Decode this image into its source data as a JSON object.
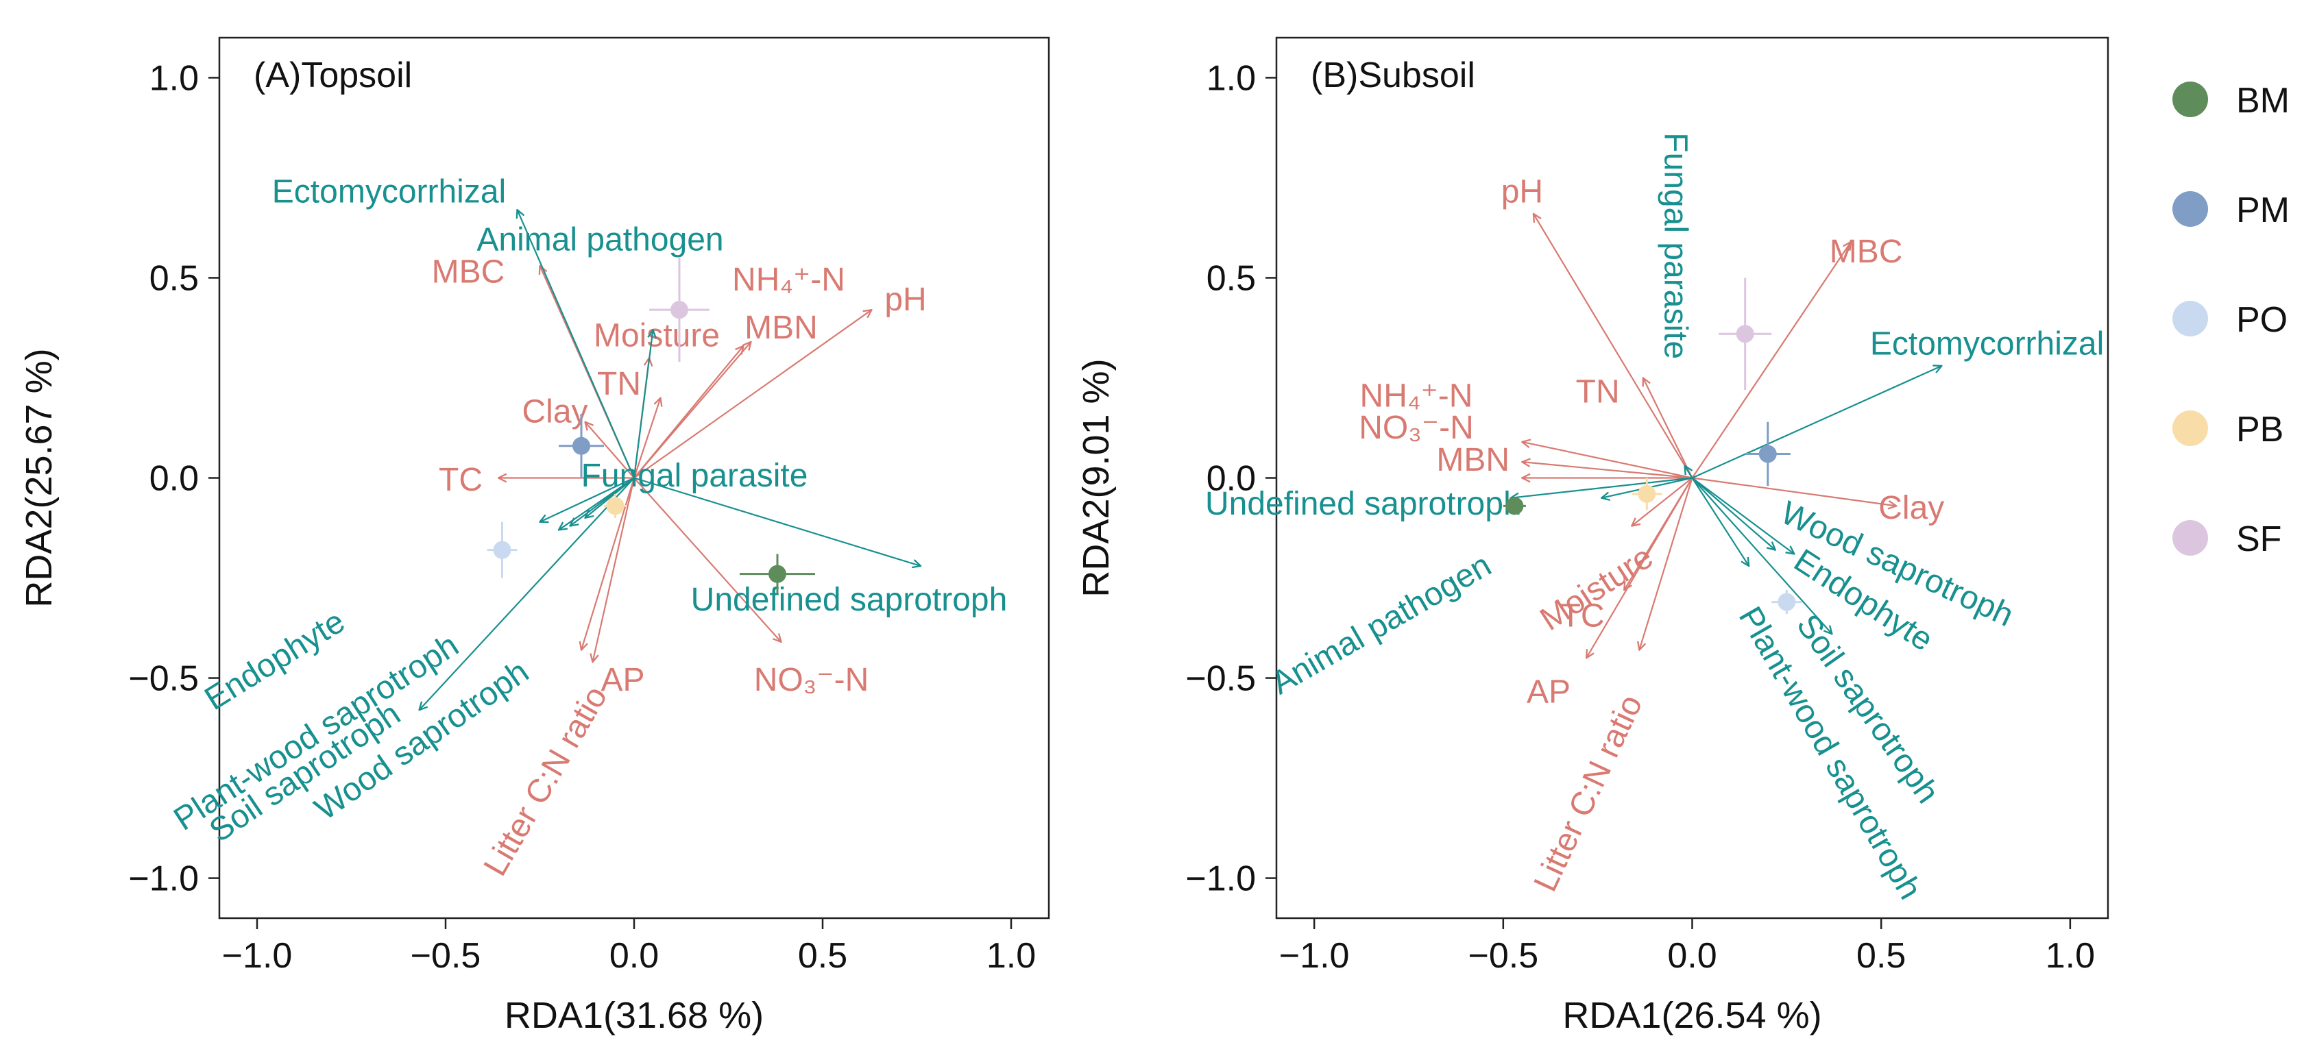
{
  "colors": {
    "env": "#D97A72",
    "guild": "#17908F",
    "BM": "#5E8C5A",
    "PM": "#7F9DC5",
    "PO": "#C9DAF0",
    "PB": "#F8DDA8",
    "SF": "#DCC5DF"
  },
  "legend": [
    {
      "key": "BM",
      "label": "BM"
    },
    {
      "key": "PM",
      "label": "PM"
    },
    {
      "key": "PO",
      "label": "PO"
    },
    {
      "key": "PB",
      "label": "PB"
    },
    {
      "key": "SF",
      "label": "SF"
    }
  ],
  "chart_data": [
    {
      "type": "scatter",
      "title": "(A)Topsoil",
      "xlabel": "RDA1(31.68 %)",
      "ylabel": "RDA2(25.67 %)",
      "xlim": [
        -1.1,
        1.1
      ],
      "ylim": [
        -1.1,
        1.1
      ],
      "xticks": [
        -1.0,
        -0.5,
        0.0,
        0.5,
        1.0
      ],
      "yticks": [
        -1.0,
        -0.5,
        0.0,
        0.5,
        1.0
      ],
      "xtick_labels": [
        "−1.0",
        "−0.5",
        "0.0",
        "0.5",
        "1.0"
      ],
      "ytick_labels": [
        "−1.0",
        "−0.5",
        "0.0",
        "0.5",
        "1.0"
      ],
      "env_arrows": [
        {
          "label": "MBC",
          "x": -0.25,
          "y": 0.53,
          "lx": -0.44,
          "ly": 0.51,
          "rot": 0
        },
        {
          "label": "NH₄⁺-N",
          "x": 0.31,
          "y": 0.34,
          "lx": 0.41,
          "ly": 0.49,
          "rot": 0
        },
        {
          "label": "pH",
          "x": 0.63,
          "y": 0.42,
          "lx": 0.72,
          "ly": 0.44,
          "rot": 0
        },
        {
          "label": "Moisture",
          "x": 0.04,
          "y": 0.3,
          "lx": 0.06,
          "ly": 0.35,
          "rot": 0
        },
        {
          "label": "MBN",
          "x": 0.29,
          "y": 0.33,
          "lx": 0.39,
          "ly": 0.37,
          "rot": 0
        },
        {
          "label": "TN",
          "x": 0.07,
          "y": 0.2,
          "lx": -0.04,
          "ly": 0.23,
          "rot": 0
        },
        {
          "label": "Clay",
          "x": -0.13,
          "y": 0.14,
          "lx": -0.21,
          "ly": 0.16,
          "rot": 0
        },
        {
          "label": "TC",
          "x": -0.36,
          "y": 0.0,
          "lx": -0.46,
          "ly": -0.01,
          "rot": 0
        },
        {
          "label": "AP",
          "x": -0.14,
          "y": -0.43,
          "lx": -0.03,
          "ly": -0.51,
          "rot": 0
        },
        {
          "label": "NO₃⁻-N",
          "x": 0.39,
          "y": -0.41,
          "lx": 0.47,
          "ly": -0.51,
          "rot": 0
        },
        {
          "label": "Litter C:N ratio",
          "x": -0.11,
          "y": -0.46,
          "lx": -0.23,
          "ly": -0.76,
          "rot": -60
        }
      ],
      "guild_arrows": [
        {
          "label": "Ectomycorrhizal",
          "x": -0.31,
          "y": 0.67,
          "lx": -0.65,
          "ly": 0.71,
          "rot": 0
        },
        {
          "label": "Animal pathogen",
          "x": 0.05,
          "y": 0.37,
          "lx": -0.09,
          "ly": 0.59,
          "rot": 0
        },
        {
          "label": "Fungal parasite",
          "x": 0.76,
          "y": -0.22,
          "lx": 0.16,
          "ly": 0.0,
          "rot": 0
        },
        {
          "label": "Undefined saprotroph",
          "x": -0.2,
          "y": -0.13,
          "lx": 0.57,
          "ly": -0.31,
          "rot": 0
        },
        {
          "label": "Endophyte",
          "x": -0.25,
          "y": -0.11,
          "lx": -0.95,
          "ly": -0.46,
          "rot": -32
        },
        {
          "label": "Plant-wood saprotroph",
          "x": -0.17,
          "y": -0.12,
          "lx": -0.84,
          "ly": -0.64,
          "rot": -33
        },
        {
          "label": "Soil saprotroph",
          "x": -0.57,
          "y": -0.58,
          "lx": -0.87,
          "ly": -0.74,
          "rot": -34
        },
        {
          "label": "Wood saprotroph",
          "x": -0.13,
          "y": -0.1,
          "lx": -0.56,
          "ly": -0.66,
          "rot": -35
        }
      ],
      "points": [
        {
          "group": "BM",
          "x": 0.38,
          "y": -0.24,
          "xerr": 0.1,
          "yerr": 0.05
        },
        {
          "group": "PM",
          "x": -0.14,
          "y": 0.08,
          "xerr": 0.06,
          "yerr": 0.08
        },
        {
          "group": "PO",
          "x": -0.35,
          "y": -0.18,
          "xerr": 0.04,
          "yerr": 0.07
        },
        {
          "group": "PB",
          "x": -0.05,
          "y": -0.07,
          "xerr": 0.03,
          "yerr": 0.03
        },
        {
          "group": "SF",
          "x": 0.12,
          "y": 0.42,
          "xerr": 0.08,
          "yerr": 0.13
        }
      ]
    },
    {
      "type": "scatter",
      "title": "(B)Subsoil",
      "xlabel": "RDA1(26.54 %)",
      "ylabel": "RDA2(9.01 %)",
      "xlim": [
        -1.1,
        1.1
      ],
      "ylim": [
        -1.1,
        1.1
      ],
      "xticks": [
        -1.0,
        -0.5,
        0.0,
        0.5,
        1.0
      ],
      "yticks": [
        -1.0,
        -0.5,
        0.0,
        0.5,
        1.0
      ],
      "xtick_labels": [
        "−1.0",
        "−0.5",
        "0.0",
        "0.5",
        "1.0"
      ],
      "ytick_labels": [
        "−1.0",
        "−0.5",
        "0.0",
        "0.5",
        "1.0"
      ],
      "env_arrows": [
        {
          "label": "pH",
          "x": -0.42,
          "y": 0.66,
          "lx": -0.45,
          "ly": 0.71,
          "rot": 0
        },
        {
          "label": "MBC",
          "x": 0.42,
          "y": 0.59,
          "lx": 0.46,
          "ly": 0.56,
          "rot": 0
        },
        {
          "label": "TN",
          "x": -0.13,
          "y": 0.25,
          "lx": -0.25,
          "ly": 0.21,
          "rot": 0
        },
        {
          "label": "NH₄⁺-N",
          "x": -0.45,
          "y": 0.09,
          "lx": -0.73,
          "ly": 0.2,
          "rot": 0
        },
        {
          "label": "NO₃⁻-N",
          "x": -0.45,
          "y": 0.04,
          "lx": -0.73,
          "ly": 0.12,
          "rot": 0
        },
        {
          "label": "MBN",
          "x": -0.45,
          "y": 0.0,
          "lx": -0.58,
          "ly": 0.04,
          "rot": 0
        },
        {
          "label": "Clay",
          "x": 0.54,
          "y": -0.07,
          "lx": 0.58,
          "ly": -0.08,
          "rot": 0
        },
        {
          "label": "Moisture",
          "x": -0.16,
          "y": -0.12,
          "lx": -0.25,
          "ly": -0.28,
          "rot": -33
        },
        {
          "label": "TC",
          "x": -0.18,
          "y": -0.28,
          "lx": -0.29,
          "ly": -0.35,
          "rot": 0
        },
        {
          "label": "AP",
          "x": -0.28,
          "y": -0.45,
          "lx": -0.38,
          "ly": -0.54,
          "rot": 0
        },
        {
          "label": "Litter C:N ratio",
          "x": -0.14,
          "y": -0.43,
          "lx": -0.27,
          "ly": -0.79,
          "rot": -65
        }
      ],
      "guild_arrows": [
        {
          "label": "Fungal parasite",
          "x": -0.02,
          "y": 0.03,
          "lx": -0.05,
          "ly": 0.58,
          "rot": 90
        },
        {
          "label": "Ectomycorrhizal",
          "x": 0.66,
          "y": 0.28,
          "lx": 0.78,
          "ly": 0.33,
          "rot": 0
        },
        {
          "label": "Undefined saprotroph",
          "x": -0.48,
          "y": -0.05,
          "lx": -0.87,
          "ly": -0.07,
          "rot": 0
        },
        {
          "label": "Animal pathogen",
          "x": -0.24,
          "y": -0.05,
          "lx": -0.82,
          "ly": -0.37,
          "rot": -30
        },
        {
          "label": "Wood saprotroph",
          "x": 0.27,
          "y": -0.19,
          "lx": 0.54,
          "ly": -0.22,
          "rot": 25
        },
        {
          "label": "Endophyte",
          "x": 0.22,
          "y": -0.18,
          "lx": 0.45,
          "ly": -0.31,
          "rot": 33
        },
        {
          "label": "Soil saprotroph",
          "x": 0.37,
          "y": -0.39,
          "lx": 0.46,
          "ly": -0.58,
          "rot": 55
        },
        {
          "label": "Plant-wood saprotroph",
          "x": 0.15,
          "y": -0.22,
          "lx": 0.36,
          "ly": -0.69,
          "rot": 60
        }
      ],
      "points": [
        {
          "group": "BM",
          "x": -0.47,
          "y": -0.07,
          "xerr": 0.03,
          "yerr": 0.02
        },
        {
          "group": "PM",
          "x": 0.2,
          "y": 0.06,
          "xerr": 0.06,
          "yerr": 0.08
        },
        {
          "group": "PO",
          "x": 0.25,
          "y": -0.31,
          "xerr": 0.04,
          "yerr": 0.03
        },
        {
          "group": "PB",
          "x": -0.12,
          "y": -0.04,
          "xerr": 0.04,
          "yerr": 0.04
        },
        {
          "group": "SF",
          "x": 0.14,
          "y": 0.36,
          "xerr": 0.07,
          "yerr": 0.14
        }
      ]
    }
  ]
}
